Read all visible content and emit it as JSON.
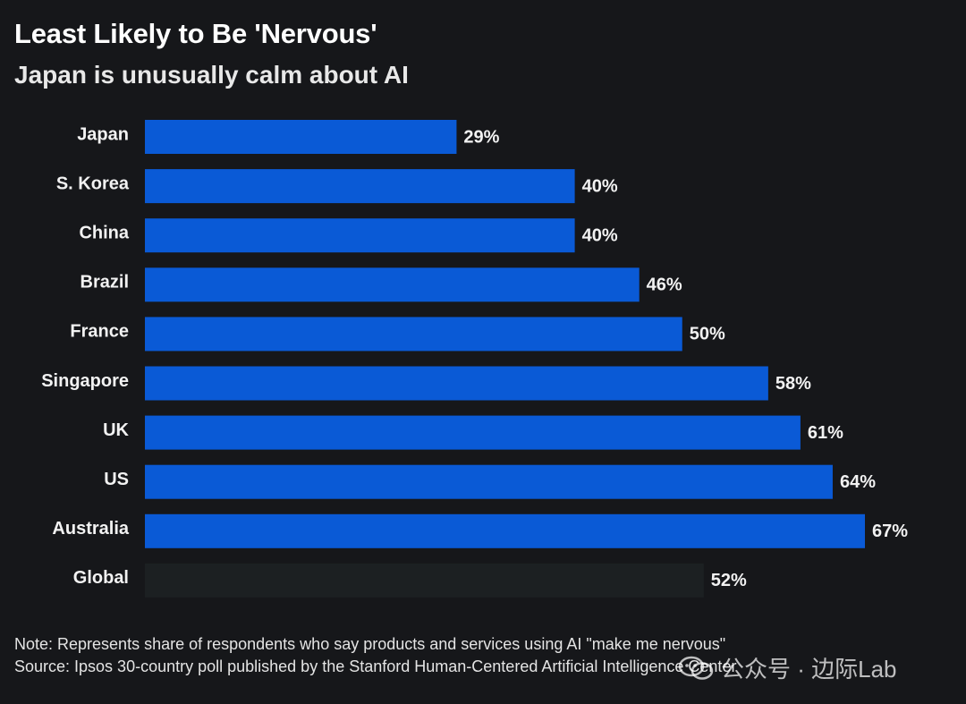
{
  "chart_data": {
    "type": "bar",
    "orientation": "horizontal",
    "title": "Least Likely to Be 'Nervous'",
    "subtitle": "Japan is unusually calm about AI",
    "categories": [
      "Japan",
      "S. Korea",
      "China",
      "Brazil",
      "France",
      "Singapore",
      "UK",
      "US",
      "Australia",
      "Global"
    ],
    "values": [
      29,
      40,
      40,
      46,
      50,
      58,
      61,
      64,
      67,
      52
    ],
    "value_labels": [
      "29%",
      "40%",
      "40%",
      "46%",
      "50%",
      "58%",
      "61%",
      "64%",
      "67%",
      "52%"
    ],
    "highlight_category": "Global",
    "xlim": [
      0,
      67
    ],
    "grid": false,
    "colors": {
      "bar": "#0a5ad6",
      "global_bar": "#1c2022",
      "background": "#16171a"
    }
  },
  "note": "Note: Represents share of respondents who say products and services using AI \"make me nervous\"",
  "source": "Source: Ipsos 30-country poll published by the Stanford Human-Centered Artificial Intelligence Center",
  "watermark": {
    "text": "公众号 · 边际Lab",
    "icon": "wechat-icon"
  }
}
